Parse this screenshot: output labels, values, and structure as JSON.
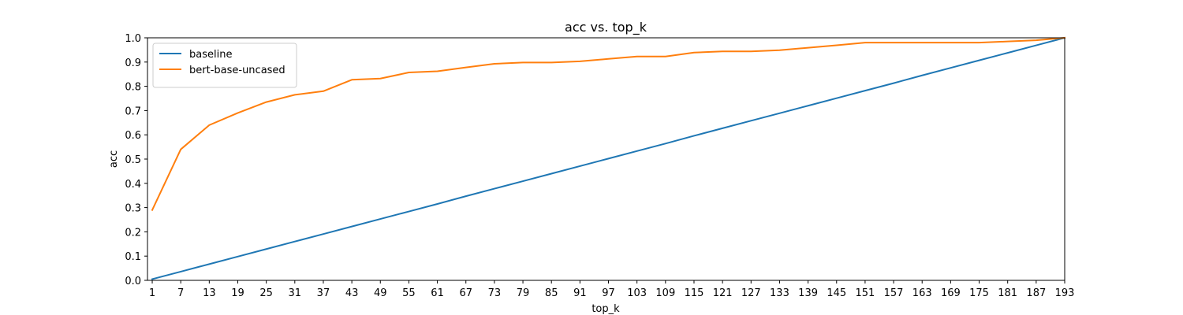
{
  "chart_data": {
    "type": "line",
    "title": "acc vs. top_k",
    "xlabel": "top_k",
    "ylabel": "acc",
    "xlim": [
      0,
      193
    ],
    "ylim": [
      0.0,
      1.0
    ],
    "x_ticks": [
      1,
      7,
      13,
      19,
      25,
      31,
      37,
      43,
      49,
      55,
      61,
      67,
      73,
      79,
      85,
      91,
      97,
      103,
      109,
      115,
      121,
      127,
      133,
      139,
      145,
      151,
      157,
      163,
      169,
      175,
      181,
      187,
      193
    ],
    "y_ticks": [
      "0.0",
      "0.1",
      "0.2",
      "0.3",
      "0.4",
      "0.5",
      "0.6",
      "0.7",
      "0.8",
      "0.9",
      "1.0"
    ],
    "grid": false,
    "legend_position": "top-left",
    "x": [
      1,
      7,
      13,
      19,
      25,
      31,
      37,
      43,
      49,
      55,
      61,
      67,
      73,
      79,
      85,
      91,
      97,
      103,
      109,
      115,
      121,
      127,
      133,
      139,
      145,
      151,
      157,
      163,
      169,
      175,
      181,
      187,
      193
    ],
    "series": [
      {
        "name": "baseline",
        "color": "#1f77b4",
        "values": [
          0.005,
          0.036,
          0.067,
          0.098,
          0.129,
          0.16,
          0.191,
          0.222,
          0.253,
          0.284,
          0.315,
          0.347,
          0.378,
          0.409,
          0.44,
          0.471,
          0.502,
          0.533,
          0.564,
          0.596,
          0.627,
          0.658,
          0.689,
          0.72,
          0.751,
          0.782,
          0.813,
          0.845,
          0.876,
          0.907,
          0.938,
          0.969,
          1.0
        ]
      },
      {
        "name": "bert-base-uncased",
        "color": "#ff7f0e",
        "values": [
          0.29,
          0.54,
          0.64,
          0.69,
          0.735,
          0.765,
          0.78,
          0.827,
          0.832,
          0.857,
          0.862,
          0.878,
          0.893,
          0.898,
          0.898,
          0.903,
          0.913,
          0.923,
          0.923,
          0.939,
          0.944,
          0.944,
          0.949,
          0.959,
          0.969,
          0.98,
          0.98,
          0.98,
          0.98,
          0.98,
          0.985,
          0.99,
          1.0
        ]
      }
    ]
  }
}
